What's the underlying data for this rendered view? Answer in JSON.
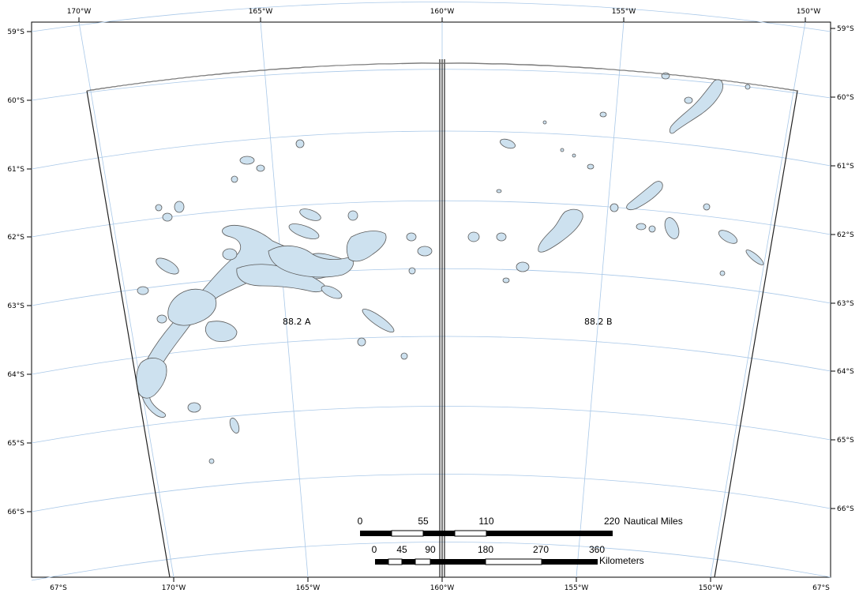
{
  "map": {
    "top_lon_labels": [
      "170°W",
      "165°W",
      "160°W",
      "155°W",
      "150°W"
    ],
    "bottom_lon_labels": [
      "67°S",
      "170°W",
      "165°W",
      "160°W",
      "155°W",
      "150°W",
      "67°S"
    ],
    "left_lat_labels": [
      "59°S",
      "60°S",
      "61°S",
      "62°S",
      "63°S",
      "64°S",
      "65°S",
      "66°S"
    ],
    "right_lat_labels": [
      "59°S",
      "60°S",
      "61°S",
      "62°S",
      "63°S",
      "64°S",
      "65°S",
      "66°S"
    ],
    "areas": [
      {
        "name": "88.2 A"
      },
      {
        "name": "88.2 B"
      }
    ],
    "colors": {
      "seamount_fill": "#cde1ef",
      "seamount_outline": "#5a5a5a",
      "graticule": "#a9c8e8",
      "boundary": "#222222"
    }
  },
  "scalebar": {
    "nautical_ticks": [
      "0",
      "55",
      "110",
      "220"
    ],
    "nautical_unit": "Nautical Miles",
    "km_ticks": [
      "0",
      "45",
      "90",
      "180",
      "270",
      "360"
    ],
    "km_unit": "Kilometers"
  }
}
